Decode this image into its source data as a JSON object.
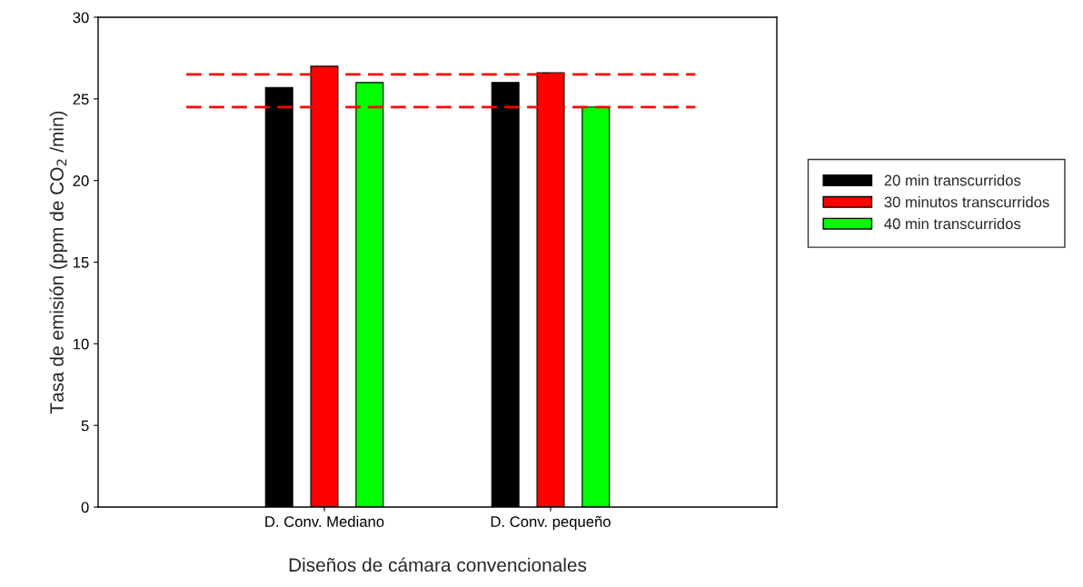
{
  "chart_data": {
    "type": "bar",
    "xlabel": "Diseños de cámara convencionales",
    "ylabel": "Tasa de emisión (ppm de CO$_{2}$ /min)",
    "categories": [
      "D. Conv. Mediano",
      "D. Conv. pequeño"
    ],
    "series": [
      {
        "name": "20 min transcurridos",
        "color": "#000000",
        "values": [
          25.7,
          26.0
        ]
      },
      {
        "name": "30 minutos transcurridos",
        "color": "#ff0000",
        "values": [
          27.0,
          26.6
        ]
      },
      {
        "name": "40 min transcurridos",
        "color": "#00ff00",
        "values": [
          26.0,
          24.5
        ]
      }
    ],
    "ref_lines": [
      {
        "axis": "y",
        "value": 26.5,
        "color": "#ff0000",
        "line_style": "dashed"
      },
      {
        "axis": "y",
        "value": 24.5,
        "color": "#ff0000",
        "line_style": "dashed"
      }
    ],
    "ylim": [
      0,
      30
    ],
    "yticks": [
      0,
      5,
      10,
      15,
      20,
      25,
      30
    ],
    "grid": false,
    "legend": "right"
  }
}
